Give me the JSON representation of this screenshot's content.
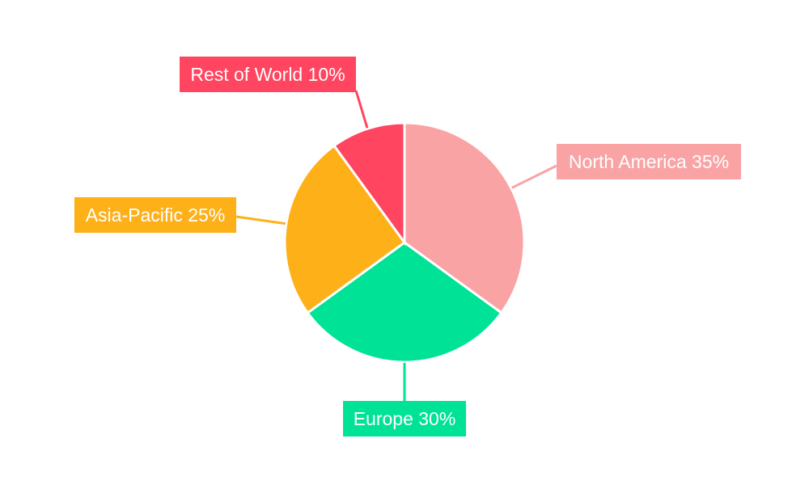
{
  "chart_data": {
    "type": "pie",
    "title": "",
    "start": "top",
    "direction": "clockwise",
    "slices": [
      {
        "label": "North America",
        "value": 35,
        "display": "North America 35%",
        "color": "#F9A3A4"
      },
      {
        "label": "Europe",
        "value": 30,
        "display": "Europe 30%",
        "color": "#00E396"
      },
      {
        "label": "Asia-Pacific",
        "value": 25,
        "display": "Asia-Pacific 25%",
        "color": "#FEB019"
      },
      {
        "label": "Rest of World",
        "value": 10,
        "display": "Rest of World 10%",
        "color": "#FF4560"
      }
    ],
    "legend": "none",
    "background": "#FFFFFF"
  }
}
